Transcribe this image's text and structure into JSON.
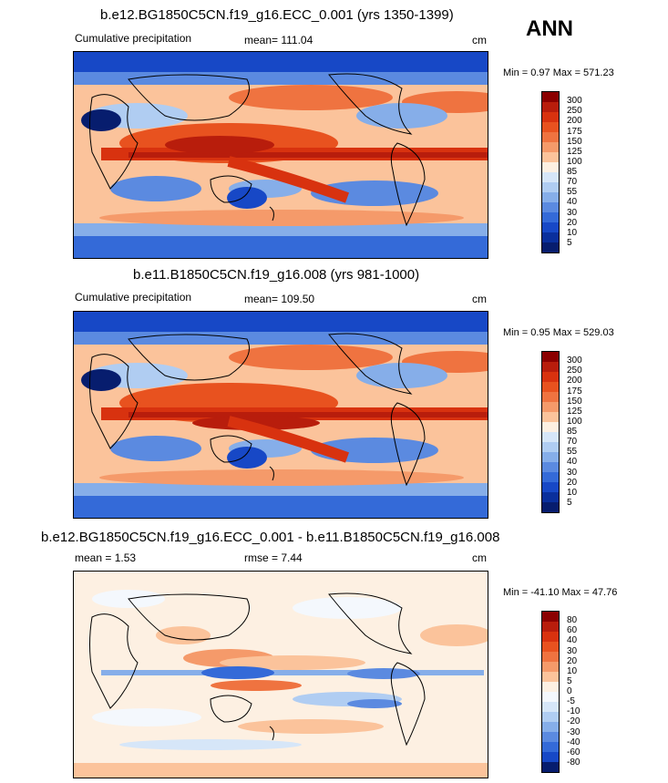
{
  "season": "ANN",
  "panels": [
    {
      "title": "b.e12.BG1850C5CN.f19_g16.ECC_0.001 (yrs 1350-1399)",
      "variable": "Cumulative precipitation",
      "stat": "mean= 111.04",
      "units": "cm",
      "minmax": "Min =   0.97 Max = 571.23",
      "levels": [
        "300",
        "250",
        "200",
        "175",
        "150",
        "125",
        "100",
        "85",
        "70",
        "55",
        "40",
        "30",
        "20",
        "10",
        "5"
      ],
      "colors": [
        "#8b0000",
        "#b81d0c",
        "#d8320f",
        "#e8521f",
        "#ef7340",
        "#f59a6a",
        "#fbc39b",
        "#fdf0e2",
        "#d6e6f8",
        "#b0cdf2",
        "#86aee9",
        "#5b8ae0",
        "#346ad8",
        "#1748c6",
        "#0a2f9c",
        "#071d6e"
      ]
    },
    {
      "title": "b.e11.B1850C5CN.f19_g16.008 (yrs 981-1000)",
      "variable": "Cumulative precipitation",
      "stat": "mean= 109.50",
      "units": "cm",
      "minmax": "Min =   0.95 Max = 529.03",
      "levels": [
        "300",
        "250",
        "200",
        "175",
        "150",
        "125",
        "100",
        "85",
        "70",
        "55",
        "40",
        "30",
        "20",
        "10",
        "5"
      ],
      "colors": [
        "#8b0000",
        "#b81d0c",
        "#d8320f",
        "#e8521f",
        "#ef7340",
        "#f59a6a",
        "#fbc39b",
        "#fdf0e2",
        "#d6e6f8",
        "#b0cdf2",
        "#86aee9",
        "#5b8ae0",
        "#346ad8",
        "#1748c6",
        "#0a2f9c",
        "#071d6e"
      ]
    },
    {
      "title": "b.e12.BG1850C5CN.f19_g16.ECC_0.001 - b.e11.B1850C5CN.f19_g16.008",
      "stat": "mean =   1.53",
      "rmse": "rmse =   7.44",
      "units": "cm",
      "minmax": "Min = -41.10 Max =  47.76",
      "levels": [
        "80",
        "60",
        "40",
        "30",
        "20",
        "10",
        "5",
        "0",
        "-5",
        "-10",
        "-20",
        "-30",
        "-40",
        "-60",
        "-80"
      ],
      "colors": [
        "#8b0000",
        "#b81d0c",
        "#d8320f",
        "#e8521f",
        "#ef7340",
        "#f59a6a",
        "#fbc39b",
        "#fdf0e2",
        "#f4f8fd",
        "#d6e6f8",
        "#b0cdf2",
        "#86aee9",
        "#5b8ae0",
        "#346ad8",
        "#1748c6",
        "#071d6e"
      ]
    }
  ]
}
